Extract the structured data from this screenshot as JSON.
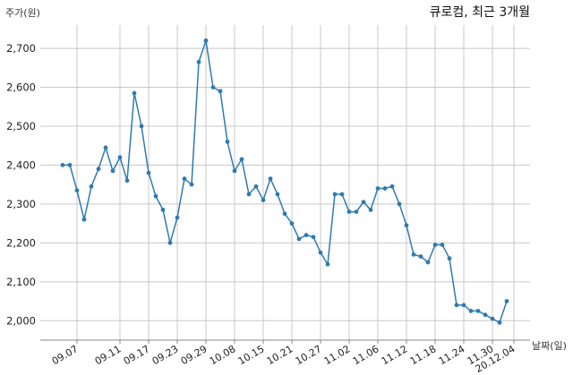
{
  "chart_data": {
    "type": "line",
    "title": "큐로컴, 최근 3개월",
    "ylabel": "주가(원)",
    "xlabel": "날짜(일)",
    "ylim": [
      1950,
      2760
    ],
    "yticks": [
      2000,
      2100,
      2200,
      2300,
      2400,
      2500,
      2600,
      2700
    ],
    "ytick_labels": [
      "2,000",
      "2,100",
      "2,200",
      "2,300",
      "2,400",
      "2,500",
      "2,600",
      "2,700"
    ],
    "xticks": [
      {
        "index": 2,
        "label": "09.07"
      },
      {
        "index": 8,
        "label": "09.11"
      },
      {
        "index": 12,
        "label": "09.17"
      },
      {
        "index": 16,
        "label": "09.23"
      },
      {
        "index": 20,
        "label": "09.29"
      },
      {
        "index": 24,
        "label": "10.08"
      },
      {
        "index": 28,
        "label": "10.15"
      },
      {
        "index": 32,
        "label": "10.21"
      },
      {
        "index": 36,
        "label": "10.27"
      },
      {
        "index": 40,
        "label": "11.02"
      },
      {
        "index": 44,
        "label": "11.06"
      },
      {
        "index": 48,
        "label": "11.12"
      },
      {
        "index": 52,
        "label": "11.18"
      },
      {
        "index": 56,
        "label": "11.24"
      },
      {
        "index": 60,
        "label": "11.30"
      },
      {
        "index": 63,
        "label": "20.12.04"
      }
    ],
    "grid": true,
    "values": [
      2400,
      2400,
      2335,
      2260,
      2345,
      2390,
      2445,
      2385,
      2420,
      2360,
      2585,
      2500,
      2380,
      2320,
      2285,
      2200,
      2265,
      2365,
      2350,
      2665,
      2720,
      2600,
      2590,
      2460,
      2385,
      2415,
      2325,
      2345,
      2310,
      2365,
      2325,
      2275,
      2250,
      2210,
      2220,
      2215,
      2175,
      2145,
      2325,
      2325,
      2280,
      2280,
      2305,
      2285,
      2340,
      2340,
      2345,
      2300,
      2245,
      2170,
      2165,
      2150,
      2195,
      2195,
      2160,
      2040,
      2040,
      2025,
      2025,
      2015,
      2005,
      1995,
      2050
    ]
  }
}
